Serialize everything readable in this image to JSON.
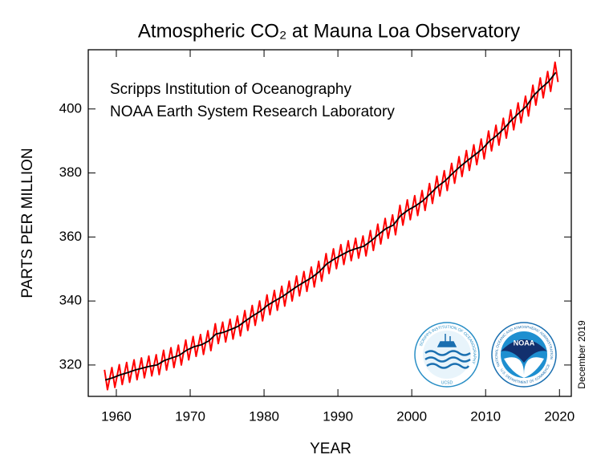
{
  "chart_data": {
    "type": "line",
    "title": "Atmospheric CO₂ at Mauna Loa Observatory",
    "subtitle": [
      "Scripps Institution of Oceanography",
      "NOAA Earth System Research Laboratory"
    ],
    "ylabel": "PARTS PER MILLION",
    "xlabel": "YEAR",
    "note": "December 2019",
    "xlim": [
      1956.2,
      2021.6
    ],
    "ylim": [
      310.2,
      418.5
    ],
    "xticks": [
      1960,
      1970,
      1980,
      1990,
      2000,
      2010,
      2020
    ],
    "yticks": [
      320,
      340,
      360,
      380,
      400
    ],
    "grid": false,
    "series": [
      {
        "color": "#ff0000",
        "x": [
          1958.4,
          1958.8,
          1959.4,
          1959.8,
          1960.4,
          1960.8,
          1961.4,
          1961.8,
          1962.4,
          1962.8,
          1963.4,
          1963.8,
          1964.4,
          1964.8,
          1965.4,
          1965.8,
          1966.4,
          1966.8,
          1967.4,
          1967.8,
          1968.4,
          1968.8,
          1969.4,
          1969.8,
          1970.4,
          1970.8,
          1971.4,
          1971.8,
          1972.4,
          1972.8,
          1973.4,
          1973.8,
          1974.4,
          1974.8,
          1975.4,
          1975.8,
          1976.4,
          1976.8,
          1977.4,
          1977.8,
          1978.4,
          1978.8,
          1979.4,
          1979.8,
          1980.4,
          1980.8,
          1981.4,
          1981.8,
          1982.4,
          1982.8,
          1983.4,
          1983.8,
          1984.4,
          1984.8,
          1985.4,
          1985.8,
          1986.4,
          1986.8,
          1987.4,
          1987.8,
          1988.4,
          1988.8,
          1989.4,
          1989.8,
          1990.4,
          1990.8,
          1991.4,
          1991.8,
          1992.4,
          1992.8,
          1993.4,
          1993.8,
          1994.4,
          1994.8,
          1995.4,
          1995.8,
          1996.4,
          1996.8,
          1997.4,
          1997.8,
          1998.4,
          1998.8,
          1999.4,
          1999.8,
          2000.4,
          2000.8,
          2001.4,
          2001.8,
          2002.4,
          2002.8,
          2003.4,
          2003.8,
          2004.4,
          2004.8,
          2005.4,
          2005.8,
          2006.4,
          2006.8,
          2007.4,
          2007.8,
          2008.4,
          2008.8,
          2009.4,
          2009.8,
          2010.4,
          2010.8,
          2011.4,
          2011.8,
          2012.4,
          2012.8,
          2013.4,
          2013.8,
          2014.4,
          2014.8,
          2015.4,
          2015.8,
          2016.4,
          2016.8,
          2017.4,
          2017.8,
          2018.4,
          2018.8,
          2019.4,
          2019.8
        ],
        "values": [
          318.5,
          312.3,
          319.2,
          313.0,
          320.1,
          313.9,
          320.8,
          314.6,
          321.6,
          315.4,
          322.2,
          316.0,
          322.8,
          316.6,
          323.2,
          317.0,
          324.6,
          318.4,
          325.4,
          319.2,
          326.2,
          320.0,
          327.8,
          321.6,
          328.9,
          322.7,
          329.5,
          323.3,
          330.7,
          324.5,
          332.9,
          326.7,
          333.4,
          327.2,
          334.3,
          328.1,
          335.3,
          329.1,
          337.0,
          330.8,
          338.6,
          332.4,
          340.0,
          333.8,
          341.9,
          335.7,
          343.3,
          337.1,
          344.6,
          338.4,
          346.2,
          340.0,
          347.8,
          341.6,
          349.2,
          343.0,
          350.6,
          344.4,
          352.4,
          346.2,
          354.8,
          348.6,
          356.3,
          350.1,
          357.6,
          351.4,
          358.8,
          352.6,
          359.6,
          353.4,
          360.3,
          354.1,
          362.0,
          355.8,
          364.0,
          357.8,
          365.8,
          359.6,
          366.9,
          360.7,
          369.9,
          363.7,
          371.6,
          365.4,
          372.9,
          366.7,
          374.5,
          368.3,
          376.7,
          370.5,
          379.0,
          372.8,
          380.7,
          374.5,
          383.0,
          376.8,
          385.1,
          378.9,
          387.0,
          380.8,
          388.8,
          382.6,
          390.6,
          384.4,
          393.1,
          386.9,
          394.9,
          388.7,
          397.1,
          390.9,
          399.7,
          393.5,
          401.9,
          395.7,
          404.0,
          397.8,
          407.4,
          401.2,
          409.7,
          403.5,
          411.7,
          405.5,
          414.6,
          408.4
        ]
      },
      {
        "color": "#000000",
        "x": [
          1958.5,
          1959.5,
          1960.5,
          1961.5,
          1962.5,
          1963.5,
          1964.5,
          1965.5,
          1966.5,
          1967.5,
          1968.5,
          1969.5,
          1970.5,
          1971.5,
          1972.5,
          1973.5,
          1974.5,
          1975.5,
          1976.5,
          1977.5,
          1978.5,
          1979.5,
          1980.5,
          1981.5,
          1982.5,
          1983.5,
          1984.5,
          1985.5,
          1986.5,
          1987.5,
          1988.5,
          1989.5,
          1990.5,
          1991.5,
          1992.5,
          1993.5,
          1994.5,
          1995.5,
          1996.5,
          1997.5,
          1998.5,
          1999.5,
          2000.5,
          2001.5,
          2002.5,
          2003.5,
          2004.5,
          2005.5,
          2006.5,
          2007.5,
          2008.5,
          2009.5,
          2010.5,
          2011.5,
          2012.5,
          2013.5,
          2014.5,
          2015.5,
          2016.5,
          2017.5,
          2018.5,
          2019.5
        ],
        "values": [
          315.3,
          316.0,
          316.9,
          317.6,
          318.4,
          319.0,
          319.6,
          320.0,
          321.4,
          322.2,
          323.0,
          324.6,
          325.7,
          326.3,
          327.5,
          329.7,
          330.2,
          331.1,
          332.1,
          333.8,
          335.4,
          336.8,
          338.7,
          340.1,
          341.4,
          343.0,
          344.6,
          346.0,
          347.4,
          349.2,
          351.6,
          353.1,
          354.4,
          355.6,
          356.4,
          357.1,
          358.8,
          360.8,
          362.6,
          363.7,
          366.7,
          368.4,
          369.7,
          371.3,
          373.5,
          375.8,
          377.5,
          379.8,
          381.9,
          383.8,
          385.6,
          387.4,
          389.9,
          391.7,
          393.9,
          396.5,
          398.7,
          400.8,
          404.2,
          406.5,
          408.5,
          411.4
        ]
      }
    ]
  },
  "logos": {
    "scripps": {
      "ring": "SCRIPPS INSTITUTION OF OCEANOGRAPHY",
      "bottom": "UCSD"
    },
    "noaa": {
      "ring": "NATIONAL OCEANIC AND ATMOSPHERIC ADMINISTRATION",
      "center": "NOAA",
      "bottom": "U.S. DEPARTMENT OF COMMERCE"
    }
  }
}
